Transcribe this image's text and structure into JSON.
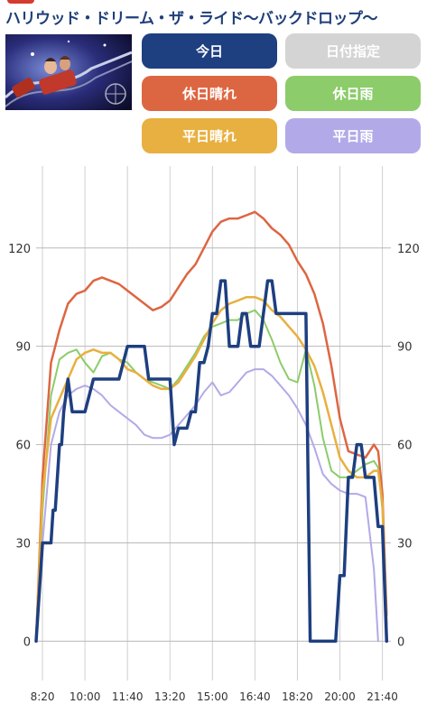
{
  "header": {
    "title": "ハリウッド・ドリーム・ザ・ライド〜バックドロップ〜"
  },
  "thumbnail": {
    "icon": "ride-photo"
  },
  "buttons": {
    "today": {
      "label": "今日",
      "color": "#1e3f80"
    },
    "date_pick": {
      "label": "日付指定",
      "color": "#d4d4d4"
    },
    "holiday_sunny": {
      "label": "休日晴れ",
      "color": "#dd6642"
    },
    "holiday_rain": {
      "label": "休日雨",
      "color": "#8ccc6a"
    },
    "weekday_sunny": {
      "label": "平日晴れ",
      "color": "#e8b040"
    },
    "weekday_rain": {
      "label": "平日雨",
      "color": "#b2aae8"
    }
  },
  "chart_data": {
    "type": "line",
    "x_ticks": [
      "8:20",
      "10:00",
      "11:40",
      "13:20",
      "15:00",
      "16:40",
      "18:20",
      "20:00",
      "21:40"
    ],
    "x_range": [
      "8:05",
      "22:00"
    ],
    "y_ticks": [
      0,
      30,
      60,
      90,
      120
    ],
    "ylim": [
      -12,
      145
    ],
    "grid": true,
    "series": [
      {
        "key": "holiday_sunny",
        "color": "#dd6642",
        "width": 2.5,
        "x": [
          "8:05",
          "8:20",
          "8:40",
          "9:00",
          "9:20",
          "9:40",
          "10:00",
          "10:20",
          "10:40",
          "11:00",
          "11:20",
          "11:40",
          "12:00",
          "12:20",
          "12:40",
          "13:00",
          "13:20",
          "13:40",
          "14:00",
          "14:20",
          "14:40",
          "15:00",
          "15:20",
          "15:40",
          "16:00",
          "16:20",
          "16:40",
          "17:00",
          "17:20",
          "17:40",
          "18:00",
          "18:20",
          "18:40",
          "19:00",
          "19:20",
          "19:40",
          "20:00",
          "20:20",
          "20:40",
          "21:00",
          "21:20",
          "21:30",
          "21:40",
          "21:50"
        ],
        "y": [
          0,
          50,
          85,
          95,
          103,
          106,
          107,
          110,
          111,
          110,
          109,
          107,
          105,
          103,
          101,
          102,
          104,
          108,
          112,
          115,
          120,
          125,
          128,
          129,
          129,
          130,
          131,
          129,
          126,
          124,
          121,
          116,
          112,
          106,
          97,
          84,
          68,
          58,
          57,
          56,
          60,
          58,
          45,
          8
        ]
      },
      {
        "key": "holiday_rain",
        "color": "#8ccc6a",
        "width": 2,
        "x": [
          "8:05",
          "8:20",
          "8:40",
          "9:00",
          "9:20",
          "9:40",
          "10:00",
          "10:20",
          "10:40",
          "11:00",
          "11:20",
          "11:40",
          "12:00",
          "12:20",
          "12:40",
          "13:00",
          "13:20",
          "13:40",
          "14:00",
          "14:20",
          "14:40",
          "15:00",
          "15:20",
          "15:40",
          "16:00",
          "16:20",
          "16:40",
          "17:00",
          "17:20",
          "17:40",
          "18:00",
          "18:20",
          "18:40",
          "19:00",
          "19:20",
          "19:40",
          "20:00",
          "20:20",
          "20:40",
          "21:00",
          "21:20",
          "21:30",
          "21:40",
          "21:50"
        ],
        "y": [
          0,
          40,
          75,
          86,
          88,
          89,
          85,
          82,
          87,
          88,
          86,
          85,
          82,
          80,
          79,
          78,
          77,
          80,
          84,
          88,
          93,
          96,
          97,
          98,
          98,
          100,
          101,
          98,
          92,
          85,
          80,
          79,
          89,
          78,
          62,
          52,
          50,
          50,
          52,
          54,
          55,
          53,
          40,
          5
        ]
      },
      {
        "key": "weekday_sunny",
        "color": "#e8b040",
        "width": 2.5,
        "x": [
          "8:05",
          "8:20",
          "8:40",
          "9:00",
          "9:20",
          "9:40",
          "10:00",
          "10:20",
          "10:40",
          "11:00",
          "11:20",
          "11:40",
          "12:00",
          "12:20",
          "12:40",
          "13:00",
          "13:20",
          "13:40",
          "14:00",
          "14:20",
          "14:40",
          "15:00",
          "15:20",
          "15:40",
          "16:00",
          "16:20",
          "16:40",
          "17:00",
          "17:20",
          "17:40",
          "18:00",
          "18:20",
          "18:40",
          "19:00",
          "19:20",
          "19:40",
          "20:00",
          "20:20",
          "20:40",
          "21:00",
          "21:20",
          "21:30",
          "21:40",
          "21:50"
        ],
        "y": [
          0,
          45,
          68,
          74,
          80,
          86,
          88,
          89,
          88,
          88,
          86,
          83,
          82,
          80,
          78,
          77,
          77,
          79,
          83,
          87,
          92,
          97,
          101,
          103,
          104,
          105,
          105,
          104,
          101,
          99,
          96,
          93,
          89,
          84,
          76,
          66,
          56,
          52,
          50,
          50,
          52,
          52,
          42,
          5
        ]
      },
      {
        "key": "weekday_rain",
        "color": "#b2aae8",
        "width": 2,
        "x": [
          "8:05",
          "8:20",
          "8:40",
          "9:00",
          "9:20",
          "9:40",
          "10:00",
          "10:20",
          "10:40",
          "11:00",
          "11:20",
          "11:40",
          "12:00",
          "12:20",
          "12:40",
          "13:00",
          "13:20",
          "13:40",
          "14:00",
          "14:20",
          "14:40",
          "15:00",
          "15:20",
          "15:40",
          "16:00",
          "16:20",
          "16:40",
          "17:00",
          "17:20",
          "17:40",
          "18:00",
          "18:20",
          "18:40",
          "19:00",
          "19:20",
          "19:40",
          "20:00",
          "20:20",
          "20:40",
          "21:00",
          "21:20",
          "21:30"
        ],
        "y": [
          0,
          30,
          60,
          70,
          75,
          77,
          78,
          77,
          75,
          72,
          70,
          68,
          66,
          63,
          62,
          62,
          63,
          66,
          69,
          72,
          76,
          79,
          75,
          76,
          79,
          82,
          83,
          83,
          81,
          78,
          75,
          71,
          66,
          59,
          51,
          48,
          46,
          45,
          45,
          44,
          22,
          0
        ]
      },
      {
        "key": "today",
        "color": "#1e3f80",
        "width": 3.5,
        "x": [
          "8:05",
          "8:20",
          "8:30",
          "8:40",
          "8:45",
          "8:50",
          "9:00",
          "9:05",
          "9:10",
          "9:20",
          "9:30",
          "9:40",
          "10:00",
          "10:20",
          "10:30",
          "10:40",
          "11:00",
          "11:20",
          "11:40",
          "12:00",
          "12:20",
          "12:30",
          "12:40",
          "13:00",
          "13:20",
          "13:30",
          "13:40",
          "14:00",
          "14:10",
          "14:20",
          "14:30",
          "14:40",
          "14:50",
          "15:00",
          "15:10",
          "15:20",
          "15:30",
          "15:40",
          "15:50",
          "16:00",
          "16:10",
          "16:20",
          "16:30",
          "16:40",
          "16:50",
          "17:00",
          "17:10",
          "17:20",
          "17:30",
          "17:40",
          "18:00",
          "18:20",
          "18:30",
          "18:40",
          "18:50",
          "19:00",
          "19:20",
          "19:40",
          "19:50",
          "20:00",
          "20:10",
          "20:20",
          "20:30",
          "20:40",
          "20:50",
          "21:00",
          "21:10",
          "21:20",
          "21:30",
          "21:40",
          "21:50"
        ],
        "y": [
          0,
          30,
          30,
          30,
          40,
          40,
          60,
          60,
          70,
          80,
          70,
          70,
          70,
          80,
          80,
          80,
          80,
          80,
          90,
          90,
          90,
          80,
          80,
          80,
          80,
          60,
          65,
          65,
          70,
          70,
          85,
          85,
          90,
          100,
          100,
          110,
          110,
          90,
          90,
          90,
          100,
          100,
          90,
          90,
          90,
          100,
          110,
          110,
          100,
          100,
          100,
          100,
          100,
          100,
          0,
          0,
          0,
          0,
          0,
          20,
          20,
          50,
          50,
          60,
          60,
          50,
          50,
          50,
          35,
          35,
          0
        ]
      }
    ]
  }
}
